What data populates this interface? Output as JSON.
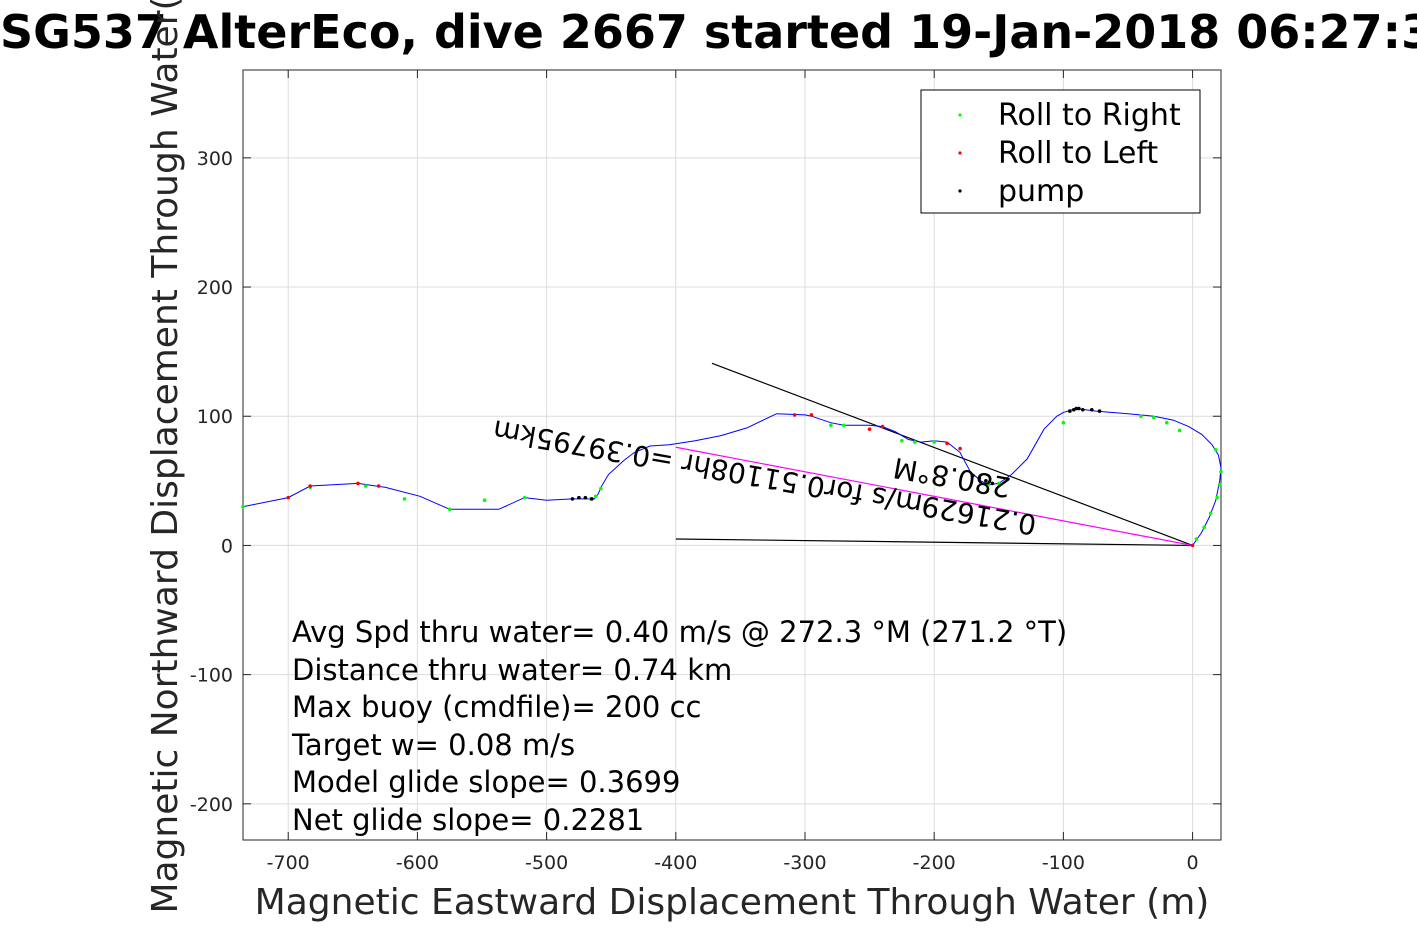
{
  "title": "SG537 AlterEco, dive 2667 started 19-Jan-2018 06:27:3",
  "chart_data": {
    "type": "line",
    "title": "SG537 AlterEco, dive 2667 started 19-Jan-2018 06:27:3",
    "xlabel": "Magnetic Eastward Displacement Through Water (m)",
    "ylabel": "Magnetic Northward Displacement Through Water(",
    "xlim": [
      -735,
      22
    ],
    "ylim": [
      -228,
      368
    ],
    "xticks": [
      -700,
      -600,
      -500,
      -400,
      -300,
      -200,
      -100,
      0
    ],
    "yticks": [
      -200,
      -100,
      0,
      100,
      200,
      300
    ],
    "grid": true,
    "legend_position": "top-right",
    "legend": [
      {
        "label": "Roll to Right",
        "color": "#00ff00"
      },
      {
        "label": "Roll to Left",
        "color": "#ff0000"
      },
      {
        "label": "pump",
        "color": "#000000"
      }
    ],
    "track": {
      "color": "#0000ff",
      "x": [
        0,
        7,
        13,
        18,
        21,
        22,
        20,
        15,
        7,
        -3,
        -15,
        -30,
        -50,
        -75,
        -90,
        -100,
        -105,
        -115,
        -128,
        -140,
        -150,
        -158,
        -164,
        -172,
        -180,
        -190,
        -200,
        -210,
        -220,
        -230,
        -240,
        -250,
        -260,
        -270,
        -280,
        -295,
        -300,
        -322,
        -345,
        -365,
        -385,
        -405,
        -420,
        -432,
        -440,
        -452,
        -458,
        -460,
        -463,
        -470,
        -480,
        -500,
        -517,
        -537,
        -575,
        -598,
        -625,
        -646,
        -683,
        -700,
        -735
      ],
      "y": [
        0,
        10,
        22,
        35,
        50,
        60,
        70,
        78,
        86,
        92,
        97,
        100,
        102,
        104,
        106,
        103,
        100,
        90,
        67,
        55,
        48,
        47,
        50,
        57,
        72,
        80,
        81,
        80,
        82,
        88,
        92,
        93,
        93,
        93,
        95,
        100,
        101,
        102,
        91,
        85,
        81,
        78,
        77,
        72,
        66,
        55,
        45,
        40,
        36,
        36,
        36,
        35,
        37,
        28,
        28,
        38,
        45,
        48,
        46,
        37,
        30
      ]
    },
    "roll_right_points": {
      "color": "#00ff00",
      "x": [
        -150,
        -158,
        -164,
        -200,
        -215,
        -225,
        -270,
        -280,
        -458,
        -462,
        -466,
        -517,
        -548,
        -575,
        -610,
        -640,
        -683,
        -735,
        3,
        9,
        14,
        19,
        21,
        22,
        18,
        -10,
        -20,
        -30,
        -40,
        -100
      ],
      "y": [
        48,
        47,
        48,
        80,
        80,
        81,
        93,
        93,
        44,
        38,
        36,
        37,
        35,
        28,
        36,
        46,
        45,
        30,
        5,
        14,
        25,
        37,
        47,
        57,
        74,
        89,
        95,
        99,
        100,
        95
      ]
    },
    "roll_left_points": {
      "color": "#ff0000",
      "x": [
        0,
        -180,
        -190,
        -240,
        -250,
        -295,
        -308,
        -646,
        -683,
        -700,
        -630
      ],
      "y": [
        0,
        75,
        79,
        92,
        90,
        101,
        101,
        48,
        46,
        37,
        46
      ]
    },
    "pump_points": {
      "color": "#000000",
      "x": [
        -85,
        -88,
        -90,
        -92,
        -95,
        -78,
        -72,
        -155,
        -160,
        -165,
        -170,
        -465,
        -470,
        -475,
        -480
      ],
      "y": [
        105,
        106,
        106,
        105,
        104,
        105,
        104,
        48,
        50,
        52,
        54,
        36,
        37,
        37,
        36
      ]
    },
    "bearing_lines": [
      {
        "x": [
          0,
          -372
        ],
        "y": [
          0,
          141
        ]
      },
      {
        "x": [
          0,
          -400
        ],
        "y": [
          0,
          5
        ]
      },
      {
        "x": [
          0,
          -400
        ],
        "y": [
          0,
          76
        ],
        "color": "#ff00ff"
      }
    ],
    "bearing_labels": [
      {
        "text": "280.8°M",
        "x": -185,
        "y": 60,
        "rotate": 190
      },
      {
        "text": "0.21629m/s for0.51108hr =0.39795km",
        "x": -330,
        "y": 60,
        "rotate": 190
      }
    ],
    "annotations": [
      "Avg Spd thru water=  0.40 m/s @ 272.3 °M (271.2 °T)",
      "Distance thru water=  0.74 km",
      "Max buoy (cmdfile)= 200 cc",
      "Target w= 0.08 m/s",
      "Model glide slope= 0.3699",
      "Net glide slope= 0.2281"
    ]
  }
}
